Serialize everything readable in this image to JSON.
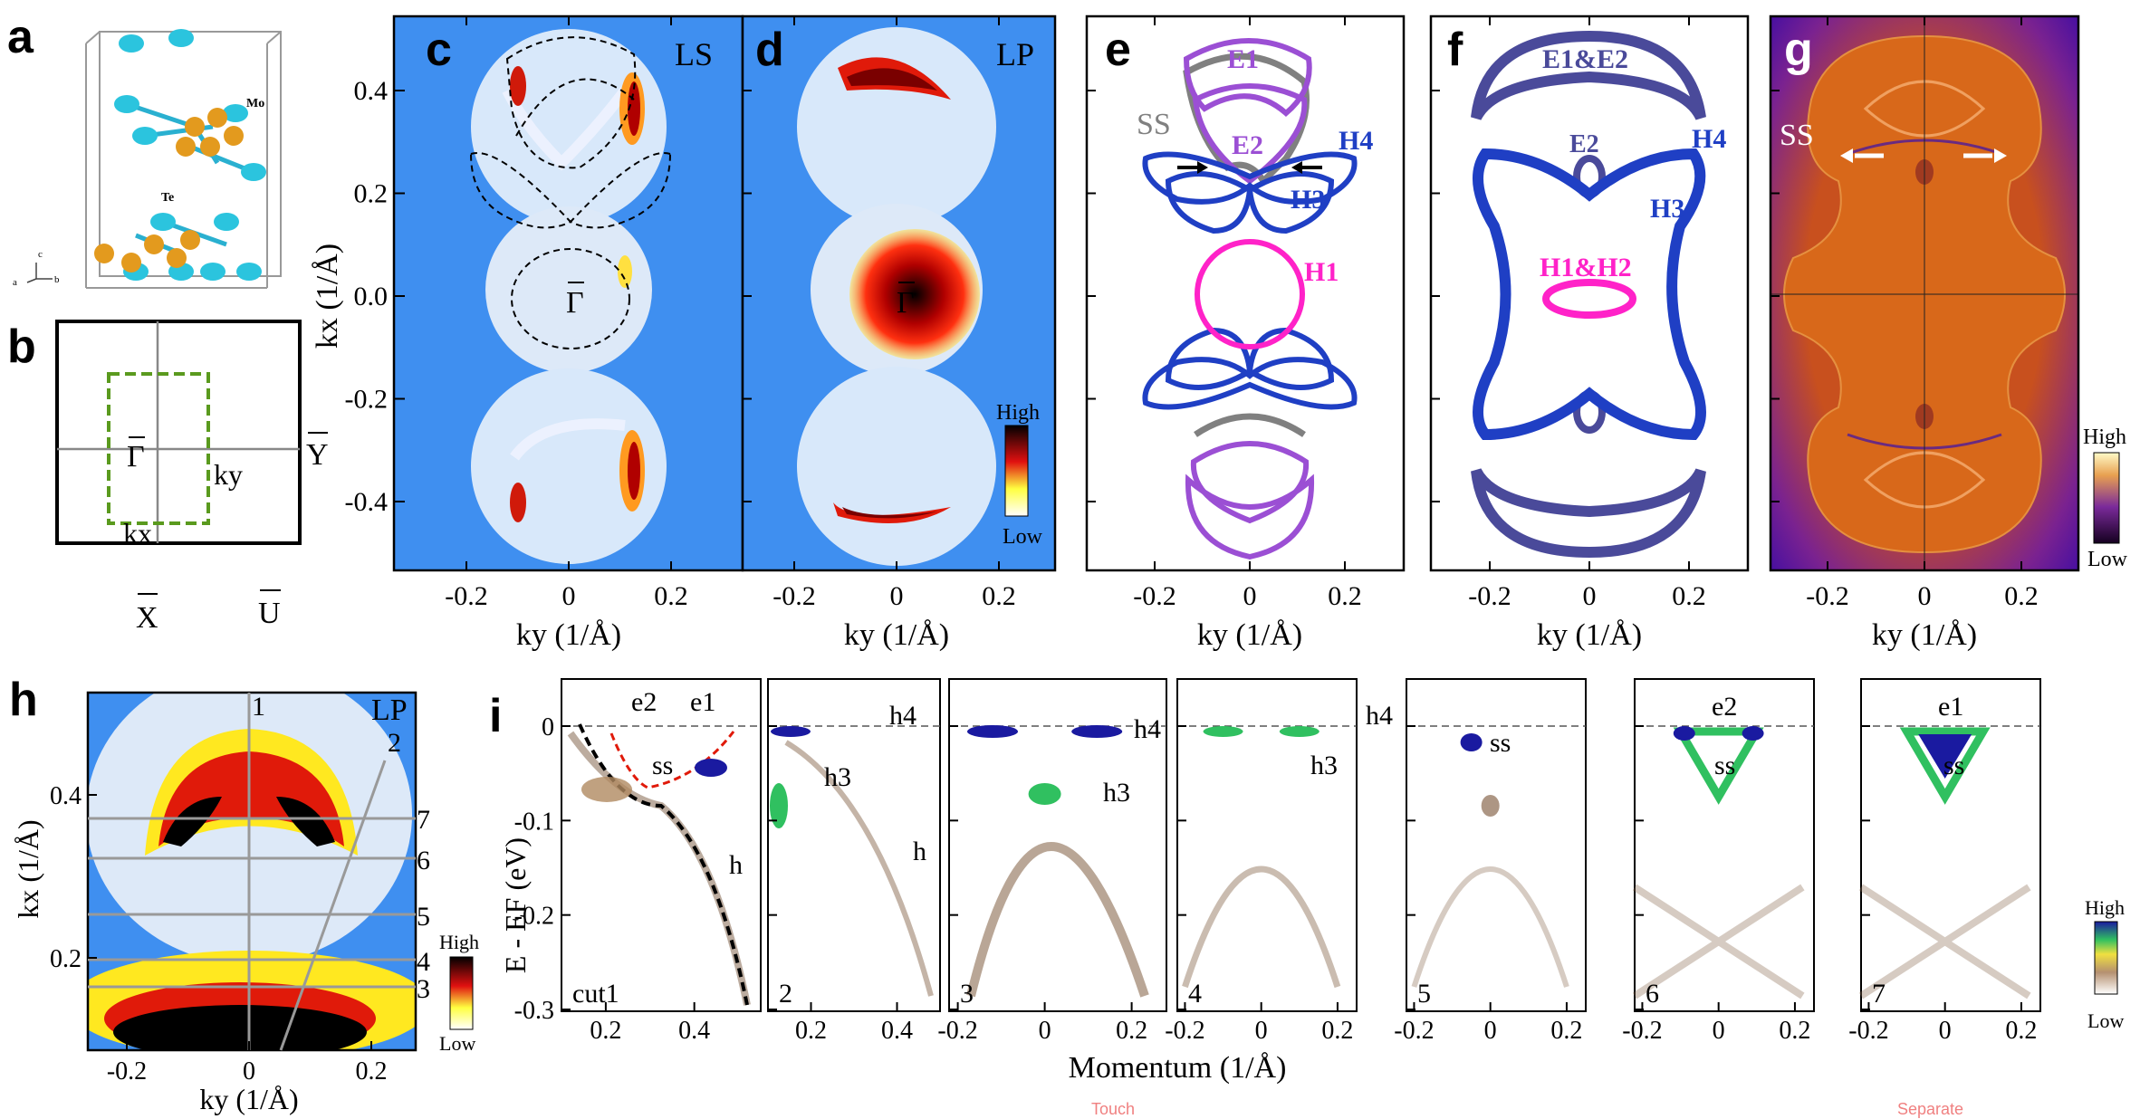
{
  "panels": {
    "a": {
      "letter": "a",
      "atom_mo": "Mo",
      "atom_te": "Te",
      "axes": [
        "a",
        "c",
        "b"
      ]
    },
    "b": {
      "letter": "b",
      "gamma": "Γ",
      "x": "X",
      "y": "Y",
      "u": "U",
      "kx": "kx",
      "ky": "ky"
    },
    "c": {
      "letter": "c",
      "tag": "LS",
      "gamma": "Γ"
    },
    "d": {
      "letter": "d",
      "tag": "LP",
      "gamma": "Γ",
      "cb_high": "High",
      "cb_low": "Low"
    },
    "e": {
      "letter": "e",
      "labels": {
        "E1": "E1",
        "E2": "E2",
        "SS": "SS",
        "H4": "H4",
        "H3": "H3",
        "H1": "H1"
      }
    },
    "f": {
      "letter": "f",
      "labels": {
        "E1E2": "E1&E2",
        "E2": "E2",
        "H4": "H4",
        "H3": "H3",
        "H1H2": "H1&H2"
      }
    },
    "g": {
      "letter": "g",
      "ss": "SS",
      "cb_high": "High",
      "cb_low": "Low"
    },
    "h": {
      "letter": "h",
      "tag": "LP",
      "cut_numbers": [
        "1",
        "2",
        "3",
        "4",
        "5",
        "6",
        "7"
      ],
      "cb_high": "High",
      "cb_low": "Low",
      "xlabel": "ky (1/Å)",
      "ylabel": "kx (1/Å)"
    },
    "i": {
      "letter": "i",
      "ylabel": "E - EF (eV)",
      "xlabel": "Momentum (1/Å)",
      "cb_high": "High",
      "cb_low": "Low"
    }
  },
  "axes_top": {
    "x_ticks": [
      "-0.2",
      "0",
      "0.2"
    ],
    "y_ticks": [
      "0.4",
      "0.2",
      "0.0",
      "-0.2",
      "-0.4"
    ],
    "xlabel": "ky (1/Å)",
    "ylabel": "kx (1/Å)"
  },
  "h_axes": {
    "x_ticks": [
      "-0.2",
      "0",
      "0.2"
    ],
    "y_ticks": [
      "0.4",
      "0.2"
    ]
  },
  "i_axes": {
    "y_ticks": [
      "0",
      "-0.1",
      "-0.2",
      "-0.3"
    ],
    "subpanels": [
      {
        "x_ticks": [
          "0.2",
          "0.4"
        ],
        "num": "cut1",
        "labels": [
          "e2",
          "e1",
          "ss",
          "h"
        ]
      },
      {
        "x_ticks": [
          "0.2",
          "0.4"
        ],
        "num": "2",
        "labels": [
          "h4",
          "h3",
          "h"
        ]
      },
      {
        "x_ticks": [
          "-0.2",
          "0",
          "0.2"
        ],
        "num": "3",
        "labels": [
          "h4",
          "h3"
        ]
      },
      {
        "x_ticks": [
          "-0.2",
          "0",
          "0.2"
        ],
        "num": "4",
        "labels": [
          "h4",
          "h3"
        ]
      },
      {
        "x_ticks": [
          "-0.2",
          "0",
          "0.2"
        ],
        "num": "5",
        "labels": [
          "ss"
        ]
      },
      {
        "x_ticks": [
          "-0.2",
          "0",
          "0.2"
        ],
        "num": "6",
        "labels": [
          "e2",
          "ss"
        ]
      },
      {
        "x_ticks": [
          "-0.2",
          "0",
          "0.2"
        ],
        "num": "7",
        "labels": [
          "e1",
          "ss"
        ]
      }
    ]
  },
  "footer": {
    "touch": "Touch",
    "separate": "Separate"
  },
  "colors": {
    "arpes_bg": "#3f8ff0",
    "purple": "#9b4fd4",
    "gray": "#808080",
    "blue": "#1f3fc4",
    "magenta": "#ff22c8",
    "slate": "#4a4a9a",
    "g_orange": "#d8681a",
    "g_purple": "#5a1a9a"
  }
}
